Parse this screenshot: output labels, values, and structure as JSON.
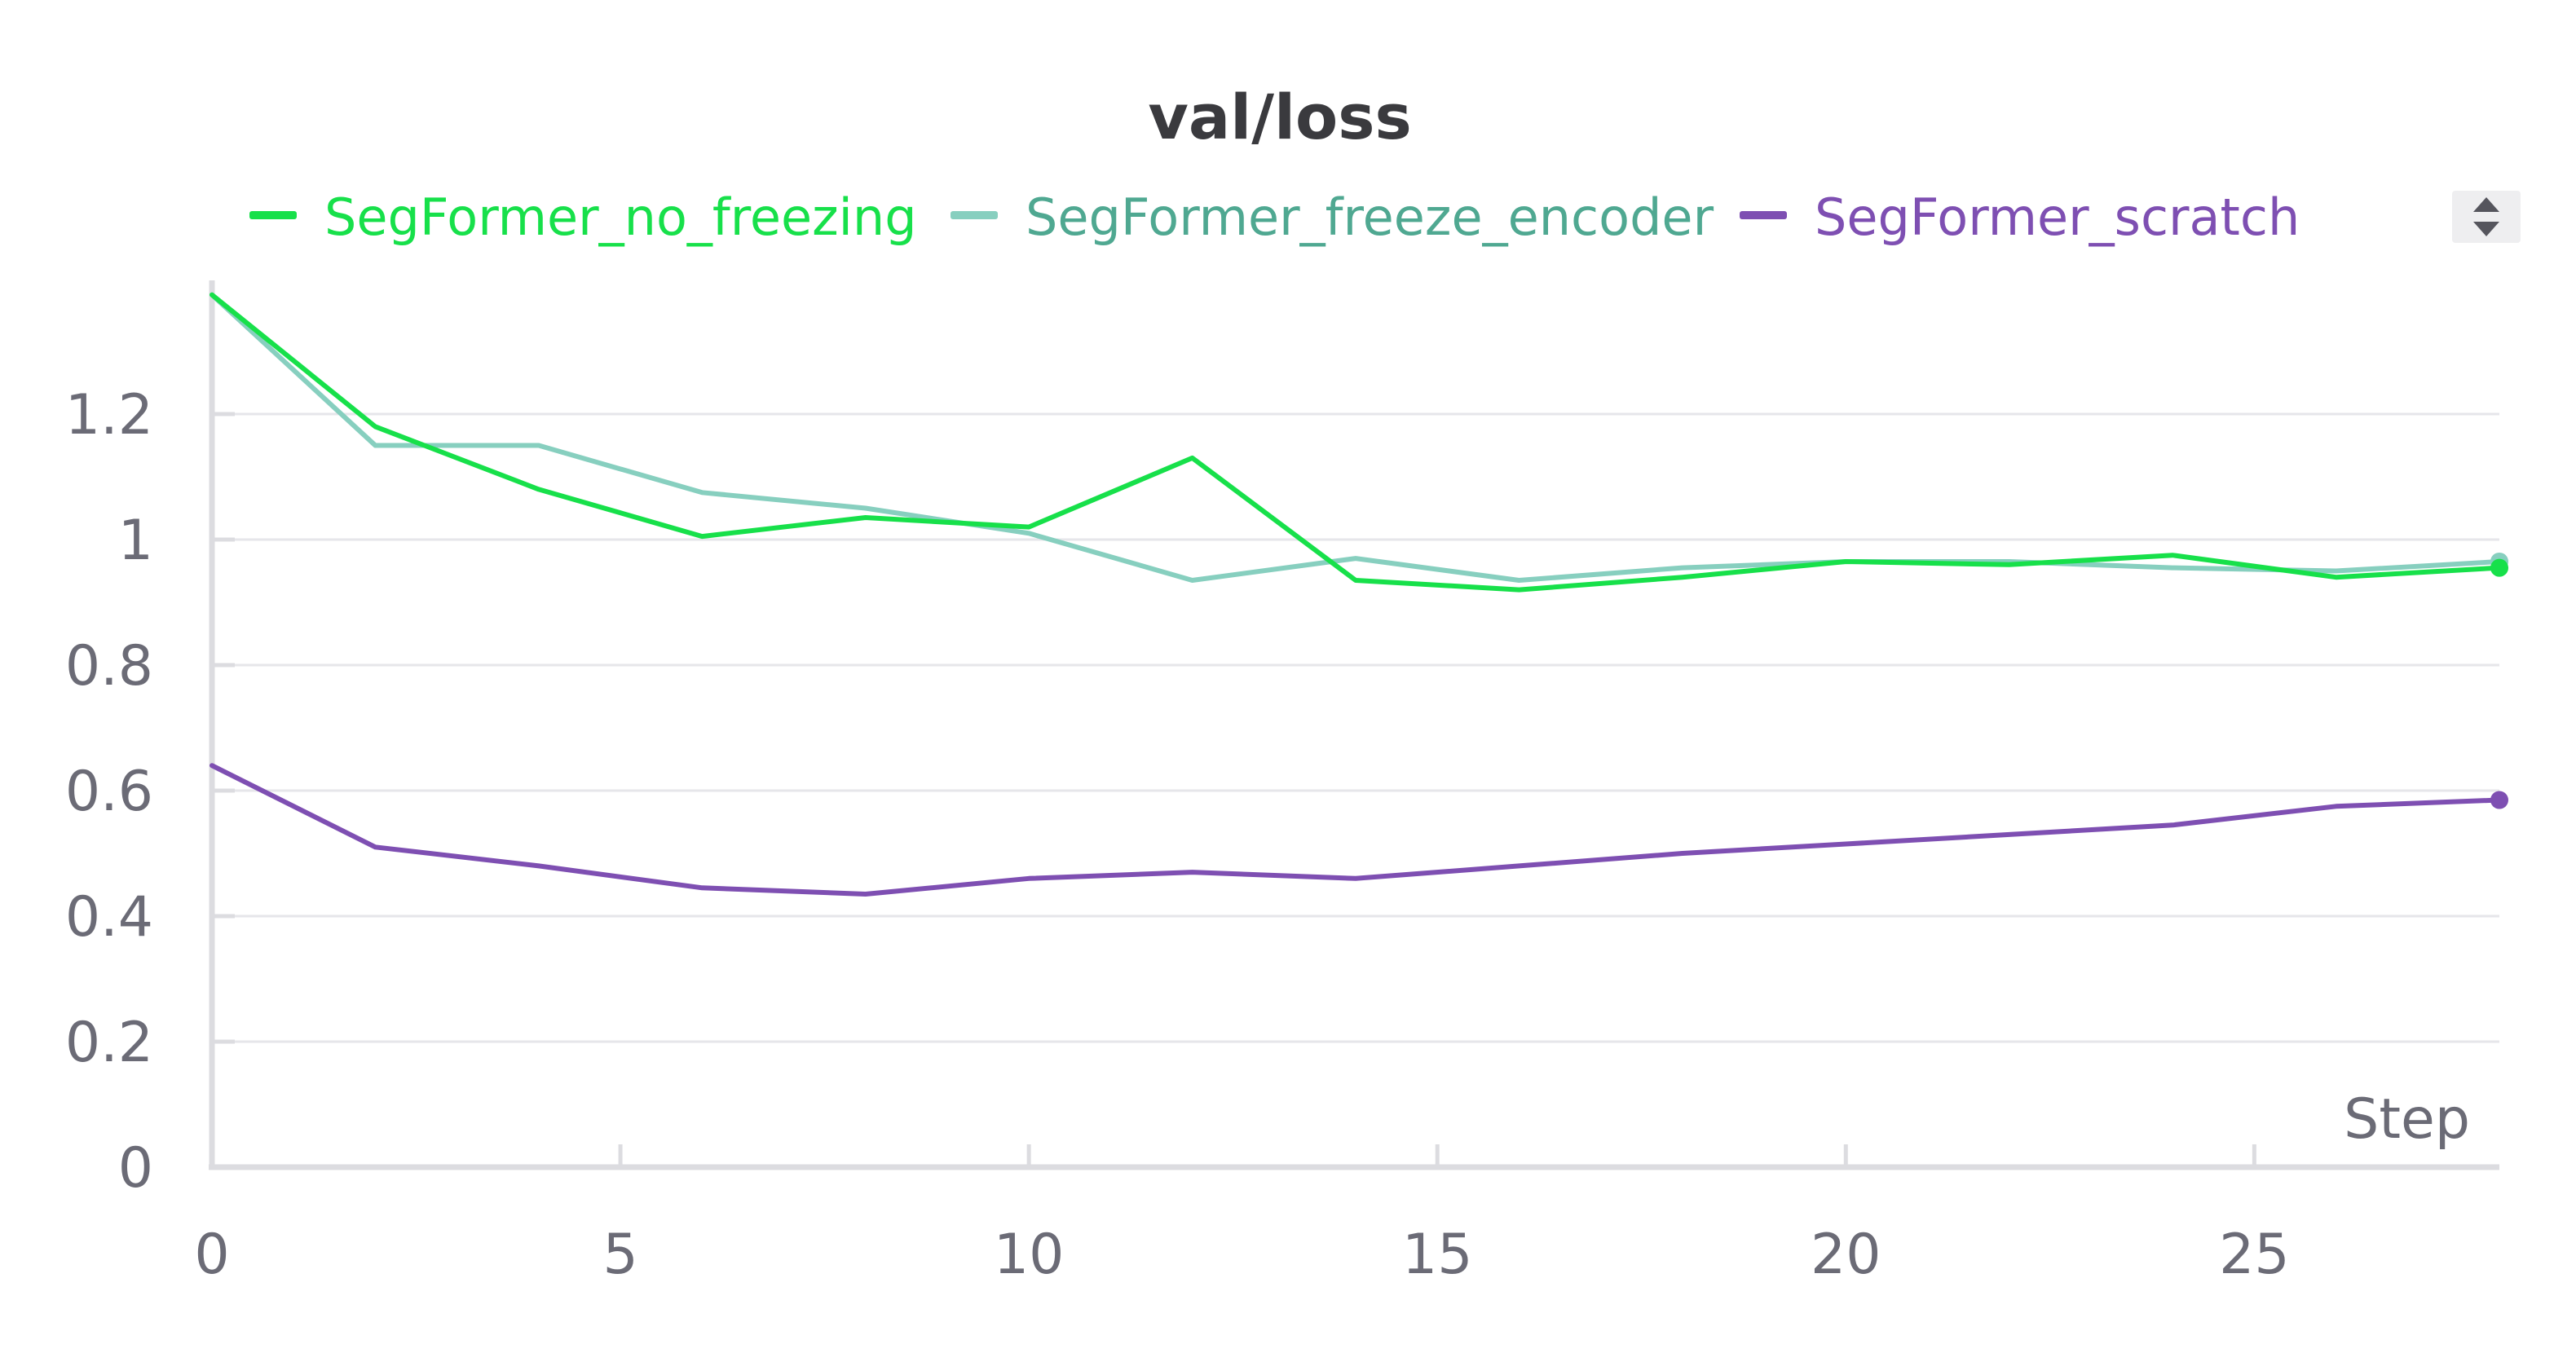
{
  "chart_data": {
    "type": "line",
    "title": "val/loss",
    "xlabel": "Step",
    "ylabel": "",
    "xlim": [
      0,
      28
    ],
    "ylim": [
      0,
      1.4
    ],
    "xticks": [
      0,
      5,
      10,
      15,
      20,
      25
    ],
    "yticks": [
      0,
      0.2,
      0.4,
      0.6,
      0.8,
      1,
      1.2
    ],
    "ytick_labels": [
      "0",
      "0.2",
      "0.4",
      "0.6",
      "0.8",
      "1",
      "1.2"
    ],
    "grid": true,
    "legend_position": "top",
    "x": [
      0,
      2,
      4,
      6,
      8,
      10,
      12,
      14,
      16,
      18,
      20,
      22,
      24,
      26,
      28
    ],
    "series": [
      {
        "name": "SegFormer_no_freezing",
        "color": "#17e04a",
        "values": [
          1.39,
          1.18,
          1.08,
          1.005,
          1.035,
          1.02,
          1.13,
          0.935,
          0.92,
          0.94,
          0.965,
          0.96,
          0.975,
          0.94,
          0.955
        ]
      },
      {
        "name": "SegFormer_freeze_encoder",
        "color": "#87cfbf",
        "values": [
          1.39,
          1.15,
          1.15,
          1.075,
          1.05,
          1.01,
          0.935,
          0.97,
          0.935,
          0.955,
          0.965,
          0.965,
          0.955,
          0.95,
          0.965
        ]
      },
      {
        "name": "SegFormer_scratch",
        "color": "#7e4fb2",
        "values": [
          0.64,
          0.51,
          0.48,
          0.445,
          0.435,
          0.46,
          0.47,
          0.46,
          0.48,
          0.5,
          0.515,
          0.53,
          0.545,
          0.575,
          0.585
        ]
      }
    ],
    "legend_text_colors": [
      "#17e04a",
      "#4fa891",
      "#7e4fb2"
    ]
  },
  "controls": {
    "sort_icon": "sort-updown-icon"
  }
}
